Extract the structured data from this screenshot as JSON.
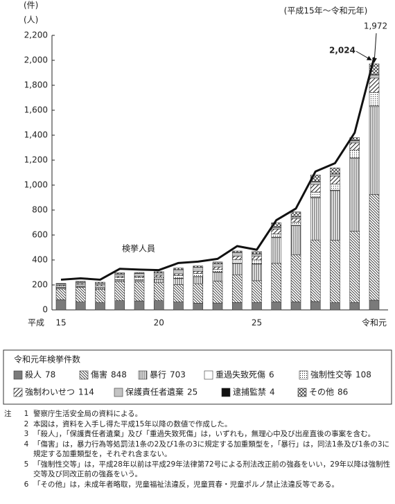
{
  "chart_data": {
    "type": "stacked-bar-line",
    "units": [
      "(件)",
      "(人)"
    ],
    "period": "(平成15年〜令和元年)",
    "x_prefix": "平成",
    "categories": [
      "15",
      null,
      null,
      null,
      null,
      "20",
      null,
      null,
      null,
      null,
      "25",
      null,
      null,
      null,
      null,
      null,
      "令和元"
    ],
    "ylim": [
      0,
      2200
    ],
    "yticks": [
      0,
      200,
      400,
      600,
      800,
      {
        "value": 1000,
        "label": "1,000"
      },
      {
        "value": 1200,
        "label": "1,200"
      },
      {
        "value": 1400,
        "label": "1,400"
      },
      {
        "value": 1600,
        "label": "1,600"
      },
      {
        "value": 1800,
        "label": "1,800"
      },
      {
        "value": 2000,
        "label": "2,000"
      },
      {
        "value": 2200,
        "label": "2,200"
      }
    ],
    "legend_title": "令和元年検挙件数",
    "series": [
      {
        "name": "殺人",
        "color": "#7a7a7a",
        "pattern": "solid",
        "values": [
          82,
          63,
          58,
          74,
          72,
          74,
          63,
          54,
          55,
          59,
          60,
          64,
          64,
          67,
          58,
          60,
          78
        ]
      },
      {
        "name": "傷害",
        "color": "#ffffff",
        "pattern": "hatch-back",
        "values": [
          86,
          118,
          105,
          154,
          152,
          144,
          140,
          156,
          176,
          223,
          174,
          309,
          379,
          493,
          500,
          570,
          848
        ]
      },
      {
        "name": "暴行",
        "color": "#ffffff",
        "pattern": "vertical",
        "values": [
          10,
          8,
          13,
          12,
          14,
          28,
          48,
          56,
          70,
          89,
          133,
          206,
          232,
          337,
          398,
          583,
          703
        ]
      },
      {
        "name": "重過失致死傷",
        "color": "#ffffff",
        "pattern": "solid",
        "values": [
          3,
          2,
          3,
          2,
          3,
          2,
          3,
          2,
          3,
          4,
          3,
          4,
          3,
          5,
          4,
          5,
          6
        ]
      },
      {
        "name": "強制性交等",
        "color": "#ffffff",
        "pattern": "dots",
        "values": [
          12,
          13,
          14,
          16,
          19,
          16,
          22,
          24,
          20,
          28,
          31,
          26,
          25,
          42,
          48,
          64,
          108
        ]
      },
      {
        "name": "強制わいせつ",
        "color": "#ffffff",
        "pattern": "hatch-forward",
        "values": [
          6,
          8,
          9,
          11,
          10,
          14,
          13,
          17,
          20,
          28,
          29,
          39,
          29,
          61,
          64,
          57,
          114
        ]
      },
      {
        "name": "保護責任者遺棄",
        "color": "#c4c4c4",
        "pattern": "solid",
        "values": [
          9,
          9,
          12,
          18,
          21,
          18,
          33,
          32,
          26,
          28,
          18,
          14,
          13,
          21,
          17,
          17,
          25
        ]
      },
      {
        "name": "逮捕監禁",
        "color": "#111111",
        "pattern": "solid",
        "values": [
          1,
          1,
          0,
          2,
          1,
          2,
          1,
          1,
          1,
          1,
          2,
          3,
          2,
          4,
          2,
          4,
          4
        ]
      },
      {
        "name": "その他",
        "color": "#ffffff",
        "pattern": "cross",
        "values": [
          3,
          7,
          8,
          8,
          8,
          9,
          12,
          10,
          13,
          12,
          17,
          33,
          38,
          51,
          47,
          20,
          86
        ]
      }
    ],
    "stack_total_labels": [
      null,
      null,
      null,
      null,
      null,
      null,
      null,
      null,
      null,
      null,
      null,
      null,
      null,
      null,
      null,
      null,
      "1,972"
    ],
    "line": {
      "name": "検挙人員",
      "color": "#111111",
      "values": [
        242,
        253,
        242,
        329,
        323,
        319,
        376,
        387,
        409,
        511,
        482,
        719,
        812,
        1109,
        1176,
        1419,
        2024
      ],
      "value_labels": [
        null,
        null,
        null,
        null,
        null,
        null,
        null,
        null,
        null,
        null,
        null,
        null,
        null,
        null,
        null,
        null,
        "2,024"
      ]
    }
  },
  "notes": {
    "label": "注",
    "items": [
      {
        "number": 1,
        "text": "警察庁生活安全局の資料による。"
      },
      {
        "number": 2,
        "text": "本図は，資料を入手し得た平成15年以降の数値で作成した。"
      },
      {
        "number": 3,
        "text": "「殺人」，「保護責任者遺棄」及び「重過失致死傷」は，いずれも，無理心中及び出産直後の事案を含む。"
      },
      {
        "number": 4,
        "text": "「傷害」は，暴力行為等処罰法1条の2及び1条の3に規定する加重類型を，「暴行」は，同法1条及び1条の3に規定する加重類型を，それぞれ含まない。"
      },
      {
        "number": 5,
        "text": "「強制性交等」は，平成28年以前は平成29年法律第72号による刑法改正前の強姦をいい，29年以降は強制性交等及び同改正前の強姦をいう。"
      },
      {
        "number": 6,
        "text": "「その他」は，未成年者略取，児童福祉法違反，児童買春・児童ポルノ禁止法違反等である。"
      }
    ]
  }
}
